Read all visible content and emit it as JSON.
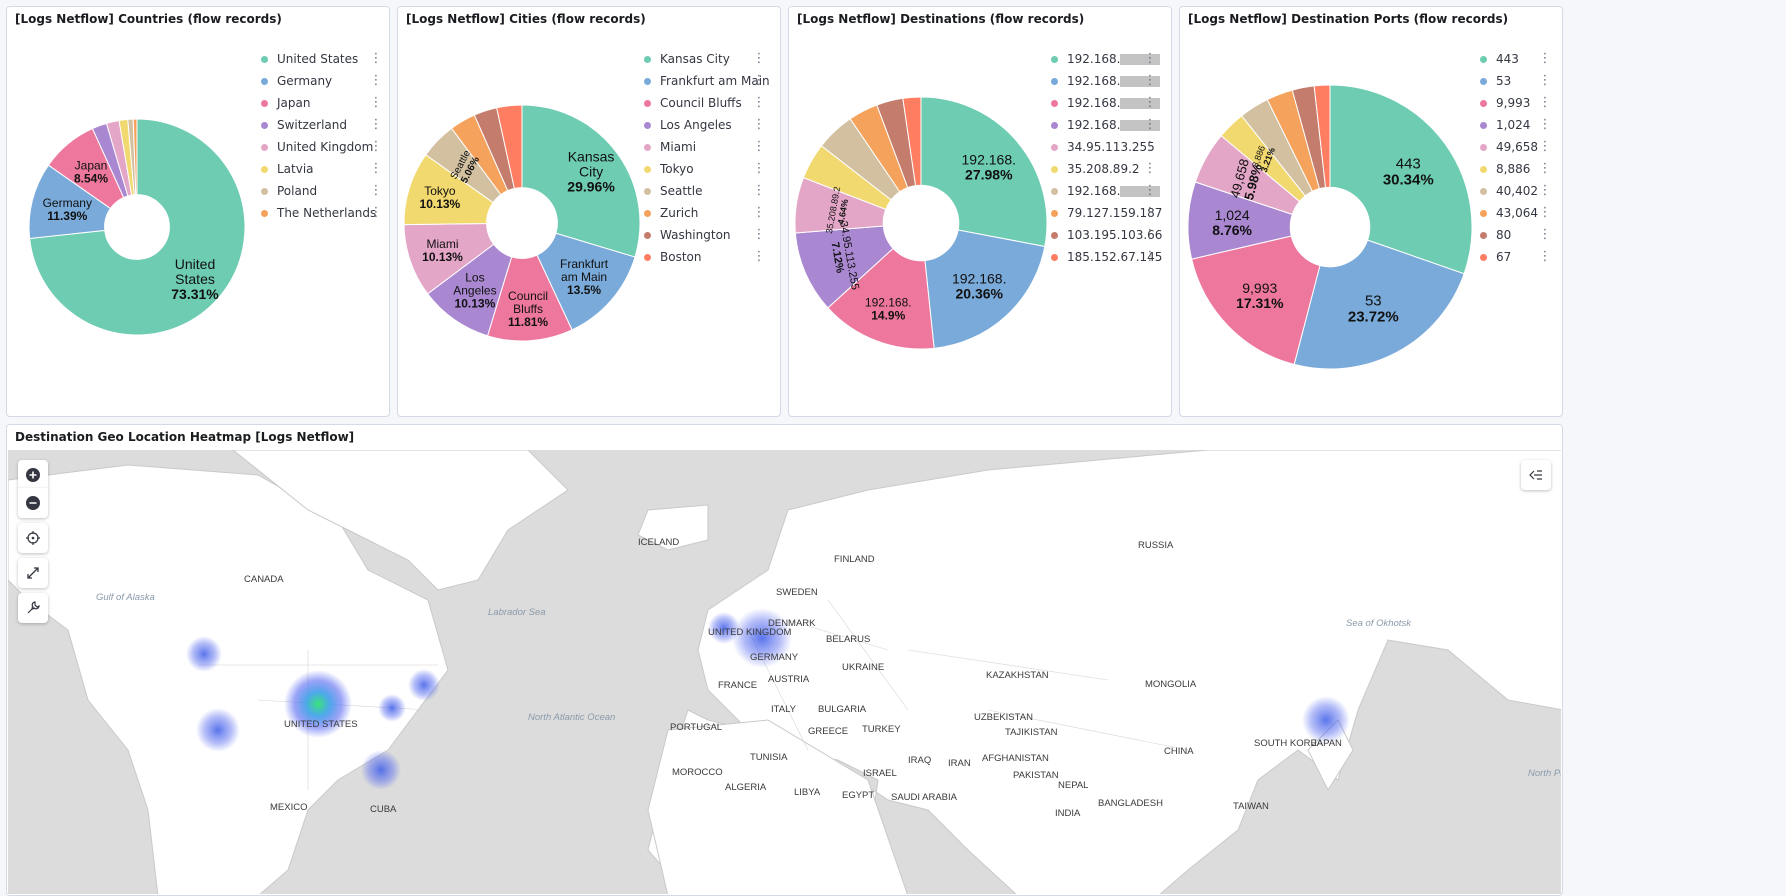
{
  "panels": {
    "countries": {
      "title": "[Logs Netflow] Countries (flow records)",
      "legend": [
        "United States",
        "Germany",
        "Japan",
        "Switzerland",
        "United Kingdom",
        "Latvia",
        "Poland",
        "The Netherlands"
      ],
      "legend_colors": [
        "#6dccb1",
        "#79aad9",
        "#ee789d",
        "#a987d1",
        "#e4a6c7",
        "#f1d86f",
        "#d2c0a0",
        "#f5a35c"
      ],
      "slices": [
        73.31,
        11.39,
        8.54,
        2.2,
        1.9,
        1.3,
        0.8,
        0.56
      ],
      "labels": [
        {
          "text": "United",
          "line2": "States",
          "value": "73.31%"
        },
        {
          "text": "Germany",
          "value": "11.39%"
        },
        {
          "text": "Japan",
          "value": "8.54%"
        }
      ]
    },
    "cities": {
      "title": "[Logs Netflow] Cities (flow records)",
      "legend": [
        "Kansas City",
        "Frankfurt am Main",
        "Council Bluffs",
        "Los Angeles",
        "Miami",
        "Tokyo",
        "Seattle",
        "Zurich",
        "Washington",
        "Boston"
      ],
      "legend_colors": [
        "#6dccb1",
        "#79aad9",
        "#ee789d",
        "#a987d1",
        "#e4a6c7",
        "#f1d86f",
        "#d2c0a0",
        "#f5a35c",
        "#c47c6c",
        "#ff7e62"
      ],
      "slices": [
        29.96,
        13.5,
        11.81,
        10.13,
        10.13,
        10.13,
        5.06,
        3.6,
        3.2,
        3.48
      ],
      "labels": [
        {
          "text": "Kansas",
          "line2": "City",
          "value": "29.96%"
        },
        {
          "text": "Frankfurt",
          "line2": "am Main",
          "value": "13.5%"
        },
        {
          "text": "Council",
          "line2": "Bluffs",
          "value": "11.81%"
        },
        {
          "text": "Los",
          "line2": "Angeles",
          "value": "10.13%"
        },
        {
          "text": "Miami",
          "value": "10.13%"
        },
        {
          "text": "Tokyo",
          "value": "10.13%"
        },
        {
          "text": "Seattle",
          "value": "5.06%"
        }
      ]
    },
    "destinations": {
      "title": "[Logs Netflow] Destinations (flow records)",
      "legend": [
        "192.168.",
        "192.168.",
        "192.168.",
        "192.168.",
        "34.95.113.255",
        "35.208.89.2",
        "192.168.",
        "79.127.159.187",
        "103.195.103.66",
        "185.152.67.145"
      ],
      "legend_colors": [
        "#6dccb1",
        "#79aad9",
        "#ee789d",
        "#a987d1",
        "#e4a6c7",
        "#f1d86f",
        "#d2c0a0",
        "#f5a35c",
        "#c47c6c",
        "#ff7e62"
      ],
      "slices": [
        27.98,
        20.36,
        14.9,
        10.5,
        7.12,
        4.64,
        5.0,
        3.8,
        3.4,
        2.3
      ],
      "labels": [
        {
          "text": "192.168.",
          "value": "27.98%"
        },
        {
          "text": "192.168.",
          "value": "20.36%"
        },
        {
          "text": "192.168.",
          "value": "14.9%"
        },
        {
          "text": "34.95.113.255",
          "value": "7.12%"
        },
        {
          "text": "35.208.89.2",
          "value": "4.64%"
        }
      ]
    },
    "ports": {
      "title": "[Logs Netflow] Destination Ports (flow records)",
      "legend": [
        "443",
        "53",
        "9,993",
        "1,024",
        "49,658",
        "8,886",
        "40,402",
        "43,064",
        "80",
        "67"
      ],
      "legend_colors": [
        "#6dccb1",
        "#79aad9",
        "#ee789d",
        "#a987d1",
        "#e4a6c7",
        "#f1d86f",
        "#d2c0a0",
        "#f5a35c",
        "#c47c6c",
        "#ff7e62"
      ],
      "slices": [
        30.34,
        23.72,
        17.31,
        8.76,
        5.98,
        3.21,
        3.4,
        3.0,
        2.5,
        1.78
      ],
      "labels": [
        {
          "text": "443",
          "value": "30.34%"
        },
        {
          "text": "53",
          "value": "23.72%"
        },
        {
          "text": "9,993",
          "value": "17.31%"
        },
        {
          "text": "1,024",
          "value": "8.76%"
        },
        {
          "text": "49,658",
          "value": "5.98%"
        },
        {
          "text": "8,886",
          "value": "3.21%"
        }
      ]
    }
  },
  "map": {
    "title": "Destination Geo Location Heatmap [Logs Netflow]",
    "controls": [
      "zoom-in",
      "zoom-out",
      "locate",
      "fullscreen",
      "tools"
    ],
    "labels": [
      {
        "name": "CANADA"
      },
      {
        "name": "Gulf of Alaska"
      },
      {
        "name": "Labrador Sea"
      },
      {
        "name": "ICELAND"
      },
      {
        "name": "UNITED KINGDOM"
      },
      {
        "name": "DENMARK"
      },
      {
        "name": "SWEDEN"
      },
      {
        "name": "FINLAND"
      },
      {
        "name": "RUSSIA"
      },
      {
        "name": "BELARUS"
      },
      {
        "name": "UKRAINE"
      },
      {
        "name": "GERMANY"
      },
      {
        "name": "FRANCE"
      },
      {
        "name": "AUSTRIA"
      },
      {
        "name": "KAZAKHSTAN"
      },
      {
        "name": "MONGOLIA"
      },
      {
        "name": "ITALY"
      },
      {
        "name": "BULGARIA"
      },
      {
        "name": "PORTUGAL"
      },
      {
        "name": "GREECE"
      },
      {
        "name": "TURKEY"
      },
      {
        "name": "UZBEKISTAN"
      },
      {
        "name": "TAJIKISTAN"
      },
      {
        "name": "AFGHANISTAN"
      },
      {
        "name": "IRAQ"
      },
      {
        "name": "IRAN"
      },
      {
        "name": "PAKISTAN"
      },
      {
        "name": "TUNISIA"
      },
      {
        "name": "MOROCCO"
      },
      {
        "name": "ALGERIA"
      },
      {
        "name": "LIBYA"
      },
      {
        "name": "EGYPT"
      },
      {
        "name": "ISRAEL"
      },
      {
        "name": "SAUDI ARABIA"
      },
      {
        "name": "NEPAL"
      },
      {
        "name": "BANGLADESH"
      },
      {
        "name": "CHINA"
      },
      {
        "name": "SOUTH KOREA"
      },
      {
        "name": "JAPAN"
      },
      {
        "name": "TAIWAN"
      },
      {
        "name": "INDIA"
      },
      {
        "name": "Sea of Okhotsk"
      },
      {
        "name": "North Pacific Ocean"
      },
      {
        "name": "North Atlantic Ocean"
      },
      {
        "name": "UNITED STATES"
      },
      {
        "name": "MEXICO"
      },
      {
        "name": "CUBA"
      }
    ]
  }
}
